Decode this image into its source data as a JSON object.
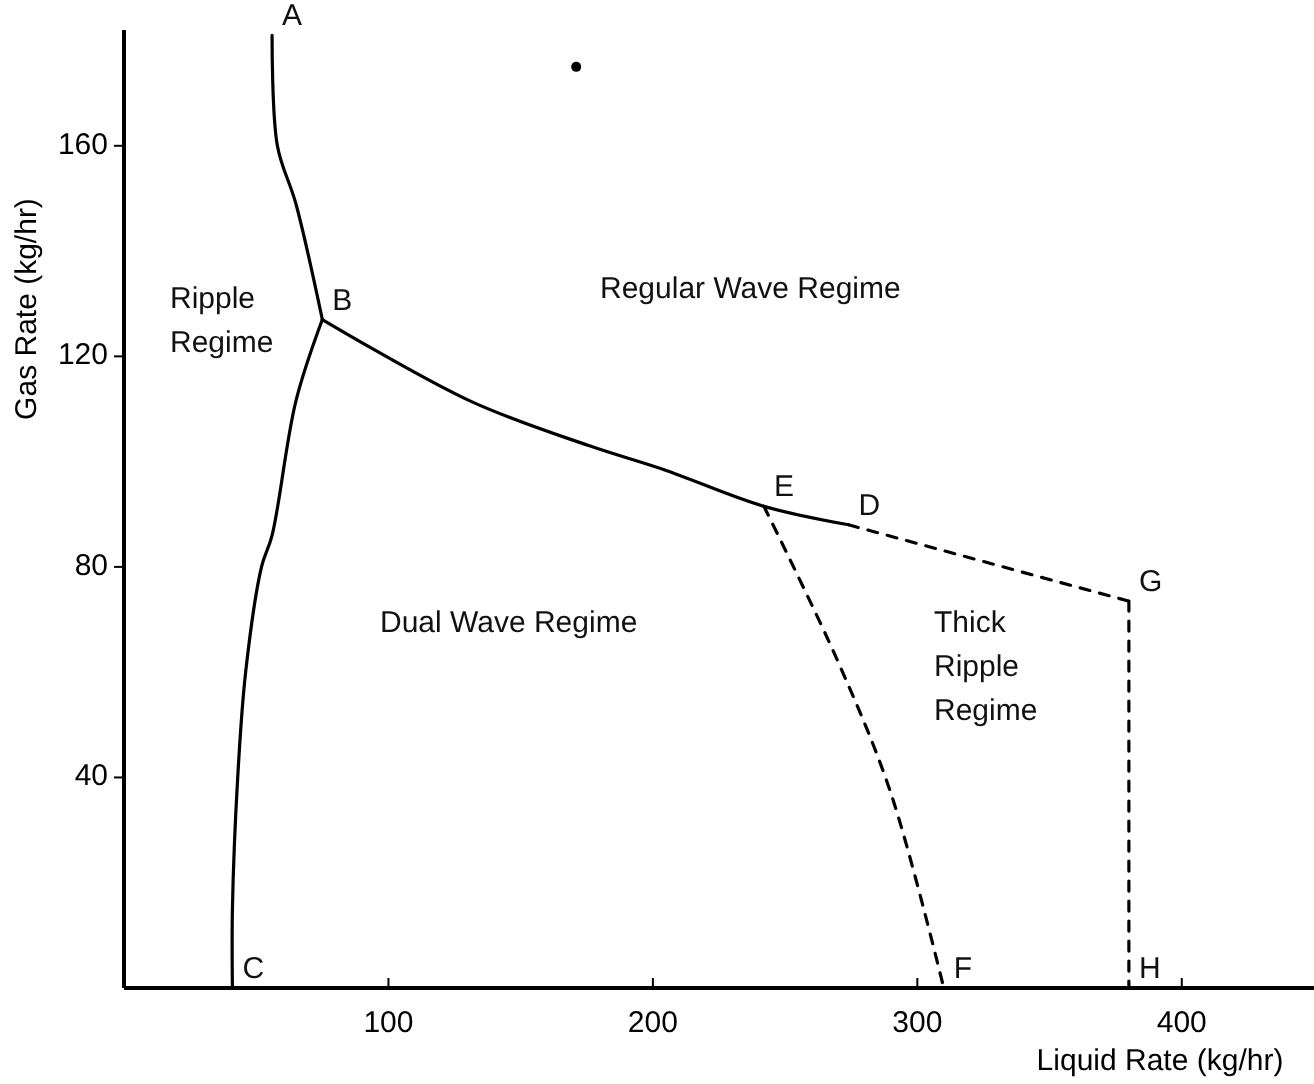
{
  "chart_data": {
    "type": "line",
    "xlabel": "Liquid Rate (kg/hr)",
    "ylabel": "Gas Rate (kg/hr)",
    "xlim": [
      0,
      450
    ],
    "ylim": [
      0,
      182
    ],
    "xticks": [
      100,
      200,
      300,
      400
    ],
    "yticks": [
      40,
      80,
      120,
      160
    ],
    "grid": false,
    "series": [
      {
        "color": "#000000",
        "line_style": "solid",
        "marker": "none",
        "x": [
          56,
          58,
          65,
          75
        ],
        "values": [
          181,
          160,
          149,
          127
        ]
      },
      {
        "color": "#000000",
        "line_style": "solid",
        "marker": "none",
        "x": [
          75,
          65,
          56,
          52,
          46,
          43,
          41,
          41
        ],
        "values": [
          127,
          111.5,
          86,
          80,
          60,
          40,
          15,
          0
        ]
      },
      {
        "color": "#000000",
        "line_style": "solid",
        "marker": "none",
        "x": [
          75,
          131,
          176,
          204,
          242,
          274
        ],
        "values": [
          127,
          111.5,
          103,
          98.5,
          91.5,
          88
        ]
      },
      {
        "color": "#000000",
        "line_style": "dashed",
        "marker": "none",
        "x": [
          274,
          380
        ],
        "values": [
          88,
          73.5
        ]
      },
      {
        "color": "#000000",
        "line_style": "dashed",
        "marker": "none",
        "x": [
          380,
          380
        ],
        "values": [
          73.5,
          0
        ]
      },
      {
        "color": "#000000",
        "line_style": "dashed",
        "marker": "none",
        "x": [
          242,
          270,
          290,
          310
        ],
        "values": [
          91.5,
          62,
          37,
          0
        ]
      },
      {
        "type": "scatter",
        "color": "#000000",
        "marker": "circle",
        "x": [
          171
        ],
        "values": [
          175
        ]
      }
    ],
    "annotations": [
      {
        "text": "A",
        "x": 56,
        "y": 181
      },
      {
        "text": "B",
        "x": 75,
        "y": 127
      },
      {
        "text": "C",
        "x": 41,
        "y": 0
      },
      {
        "text": "D",
        "x": 274,
        "y": 88
      },
      {
        "text": "E",
        "x": 242,
        "y": 91.5
      },
      {
        "text": "F",
        "x": 310,
        "y": 0
      },
      {
        "text": "G",
        "x": 380,
        "y": 73.5
      },
      {
        "text": "H",
        "x": 380,
        "y": 0
      },
      "Ripple\nRegime",
      "Regular Wave Regime",
      "Dual Wave Regime",
      "Thick\nRipple\nRegime"
    ]
  }
}
